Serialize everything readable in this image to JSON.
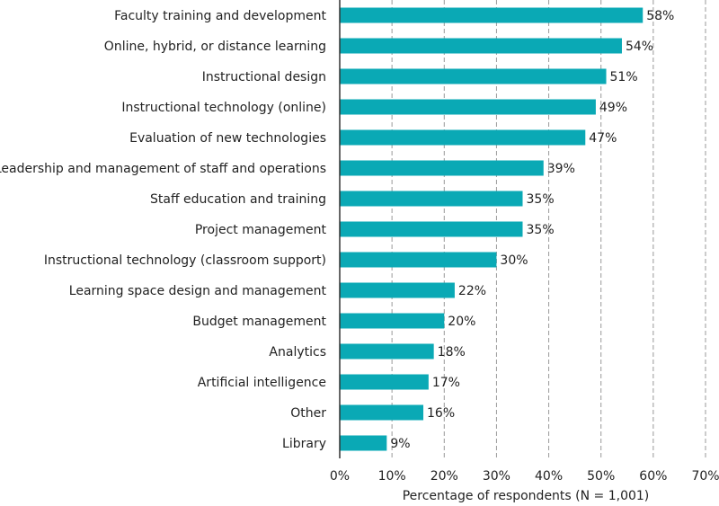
{
  "chart_data": {
    "type": "bar",
    "orientation": "horizontal",
    "x_label": "Percentage of respondents (N = 1,001)",
    "categories": [
      "Faculty training and development",
      "Online, hybrid, or distance learning",
      "Instructional design",
      "Instructional technology (online)",
      "Evaluation of new technologies",
      "Leadership and management of staff and operations",
      "Staff education and training",
      "Project management",
      "Instructional technology (classroom support)",
      "Learning space design and management",
      "Budget management",
      "Analytics",
      "Artificial intelligence",
      "Other",
      "Library"
    ],
    "values": [
      58,
      54,
      51,
      49,
      47,
      39,
      35,
      35,
      30,
      22,
      20,
      18,
      17,
      16,
      9
    ],
    "value_labels": [
      "58%",
      "54%",
      "51%",
      "49%",
      "47%",
      "39%",
      "35%",
      "35%",
      "30%",
      "22%",
      "20%",
      "18%",
      "17%",
      "16%",
      "9%"
    ],
    "color": "#0aa9b5",
    "xlim": [
      0,
      70
    ],
    "xticks": [
      {
        "value": 0,
        "label": "0%"
      },
      {
        "value": 10,
        "label": "10%"
      },
      {
        "value": 20,
        "label": "20%"
      },
      {
        "value": 30,
        "label": "30%"
      },
      {
        "value": 40,
        "label": "40%"
      },
      {
        "value": 50,
        "label": "50%"
      },
      {
        "value": 60,
        "label": "60%"
      },
      {
        "value": 70,
        "label": "70%"
      }
    ],
    "grid": true
  }
}
